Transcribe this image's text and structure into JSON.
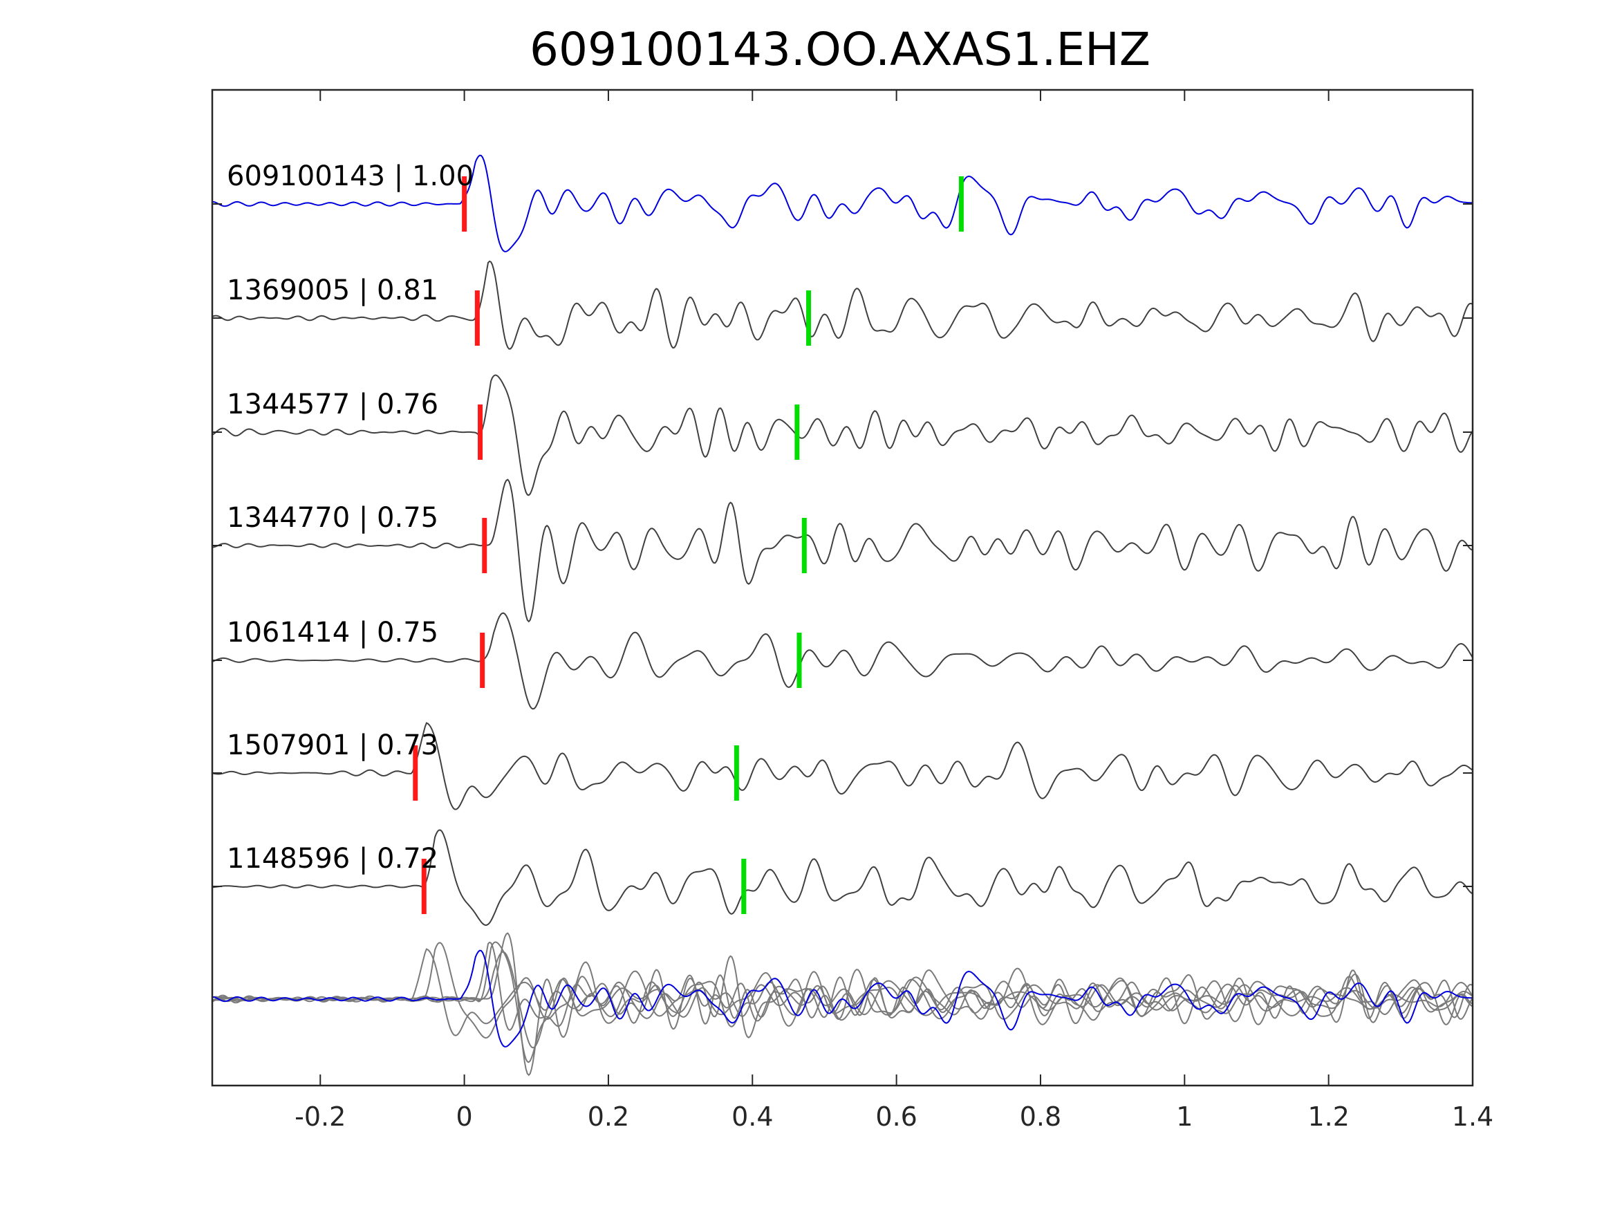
{
  "chart_data": {
    "type": "line",
    "title": "609100143.OO.AXAS1.EHZ",
    "xlabel": "",
    "ylabel": "",
    "xlim": [
      -0.35,
      1.4
    ],
    "xticks": [
      -0.2,
      0,
      0.2,
      0.4,
      0.6,
      0.8,
      1,
      1.2,
      1.4
    ],
    "xtick_labels": [
      "-0.2",
      "0",
      "0.2",
      "0.4",
      "0.6",
      "0.8",
      "1",
      "1.2",
      "1.4"
    ],
    "grid": false,
    "colors": {
      "master": "#0000dd",
      "trace": "#404040",
      "stack": "#7a7a7a",
      "p_pick": "#ff1a1a",
      "s_pick": "#00dd00",
      "axis": "#262626"
    },
    "series": [
      {
        "name": "609100143",
        "cc": "1.00",
        "label": "609100143 | 1.00",
        "p_pick": 0.0,
        "s_pick": 0.69,
        "master": true
      },
      {
        "name": "1369005",
        "cc": "0.81",
        "label": "1369005 | 0.81",
        "p_pick": 0.018,
        "s_pick": 0.478
      },
      {
        "name": "1344577",
        "cc": "0.76",
        "label": "1344577 | 0.76",
        "p_pick": 0.022,
        "s_pick": 0.462
      },
      {
        "name": "1344770",
        "cc": "0.75",
        "label": "1344770 | 0.75",
        "p_pick": 0.028,
        "s_pick": 0.472
      },
      {
        "name": "1061414",
        "cc": "0.75",
        "label": "1061414 | 0.75",
        "p_pick": 0.025,
        "s_pick": 0.465
      },
      {
        "name": "1507901",
        "cc": "0.73",
        "label": "1507901 | 0.73",
        "p_pick": -0.068,
        "s_pick": 0.378
      },
      {
        "name": "1148596",
        "cc": "0.72",
        "label": "1148596 | 0.72",
        "p_pick": -0.056,
        "s_pick": 0.388
      }
    ],
    "stack": {
      "description_visible": false
    }
  }
}
